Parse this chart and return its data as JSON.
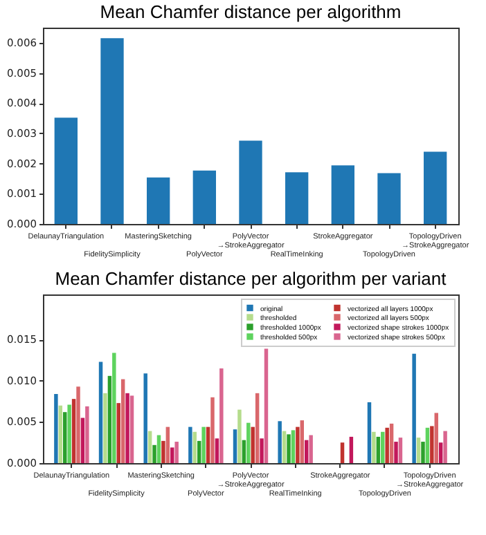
{
  "chart_data": [
    {
      "type": "bar",
      "title": "Mean Chamfer distance per algorithm",
      "categories": [
        "DelaunayTriangulation",
        "FidelitySimplicity",
        "MasteringSketching",
        "PolyVector",
        "PolyVector\n→StrokeAggregator",
        "RealTimeInking",
        "StrokeAggregator",
        "TopologyDriven",
        "TopologyDriven\n→StrokeAggregator"
      ],
      "values": [
        0.00352,
        0.00615,
        0.00154,
        0.00177,
        0.00276,
        0.00171,
        0.00194,
        0.00168,
        0.00239
      ],
      "color": "#1f77b4",
      "ylim": [
        0,
        0.0065
      ],
      "yticks": [
        {
          "value": 0,
          "label": "0.000"
        },
        {
          "value": 0.001,
          "label": "0.001"
        },
        {
          "value": 0.002,
          "label": "0.002"
        },
        {
          "value": 0.003,
          "label": "0.003"
        },
        {
          "value": 0.004,
          "label": "0.004"
        },
        {
          "value": 0.005,
          "label": "0.005"
        },
        {
          "value": 0.006,
          "label": "0.006"
        }
      ]
    },
    {
      "type": "bar",
      "title": "Mean Chamfer distance per algorithm per variant",
      "categories": [
        "DelaunayTriangulation",
        "FidelitySimplicity",
        "MasteringSketching",
        "PolyVector",
        "PolyVector\n→StrokeAggregator",
        "RealTimeInking",
        "StrokeAggregator",
        "TopologyDriven",
        "TopologyDriven\n→StrokeAggregator"
      ],
      "series": [
        {
          "name": "original",
          "color": "#1f77b4",
          "values": [
            0.0084,
            0.0123,
            0.0109,
            0.0044,
            0.0041,
            0.0051,
            null,
            0.0074,
            0.0133
          ]
        },
        {
          "name": "thresholded",
          "color": "#b5dc8c",
          "values": [
            0.007,
            0.0085,
            0.0039,
            0.0038,
            0.0065,
            0.0039,
            null,
            0.0038,
            0.0031
          ]
        },
        {
          "name": "thresholded 1000px",
          "color": "#2ca02c",
          "values": [
            0.0062,
            0.0106,
            0.0022,
            0.0027,
            0.0028,
            0.0035,
            null,
            0.0032,
            0.0026
          ]
        },
        {
          "name": "thresholded 500px",
          "color": "#5ed35e",
          "values": [
            0.0071,
            0.0134,
            0.0034,
            0.0044,
            0.0049,
            0.004,
            null,
            0.0038,
            0.0043
          ]
        },
        {
          "name": "vectorized all layers 1000px",
          "color": "#c0332f",
          "values": [
            0.0078,
            0.0073,
            0.0027,
            0.0044,
            0.0044,
            0.0044,
            0.0025,
            0.0043,
            0.0045
          ]
        },
        {
          "name": "vectorized all layers 500px",
          "color": "#d9676b",
          "values": [
            0.0093,
            0.0102,
            0.0044,
            0.008,
            0.0085,
            0.0052,
            null,
            0.0048,
            0.0061
          ]
        },
        {
          "name": "vectorized shape strokes 1000px",
          "color": "#c2185b",
          "values": [
            0.0055,
            0.0085,
            0.0019,
            0.003,
            0.003,
            0.0028,
            0.0032,
            0.0026,
            0.0025
          ]
        },
        {
          "name": "vectorized shape strokes 500px",
          "color": "#d9658f",
          "values": [
            0.0069,
            0.0082,
            0.0026,
            0.0115,
            0.0139,
            0.0034,
            null,
            0.0031,
            0.0039
          ]
        }
      ],
      "legend": "top right",
      "ylim": [
        0,
        0.0205
      ],
      "yticks": [
        {
          "value": 0,
          "label": "0.000"
        },
        {
          "value": 0.005,
          "label": "0.005"
        },
        {
          "value": 0.01,
          "label": "0.010"
        },
        {
          "value": 0.015,
          "label": "0.015"
        }
      ]
    }
  ]
}
